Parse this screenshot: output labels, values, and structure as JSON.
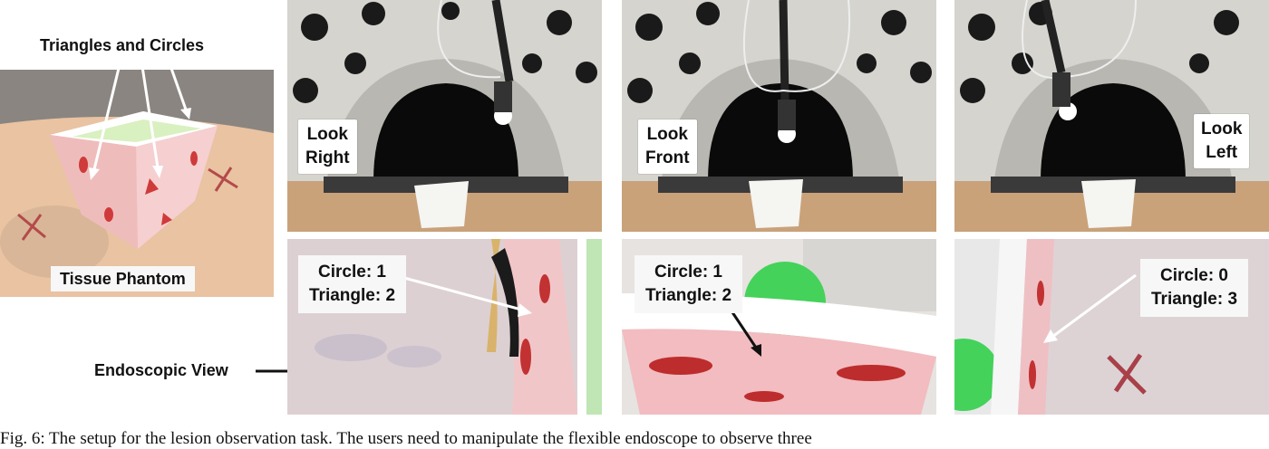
{
  "labels": {
    "triangles_circles": "Triangles and Circles",
    "tissue_phantom": "Tissue Phantom",
    "endoscopic_view": "Endoscopic View"
  },
  "views": [
    {
      "line1": "Look",
      "line2": "Right"
    },
    {
      "line1": "Look",
      "line2": "Front"
    },
    {
      "line1": "Look",
      "line2": "Left"
    }
  ],
  "counts": [
    {
      "circle": "Circle: 1",
      "triangle": "Triangle: 2"
    },
    {
      "circle": "Circle: 1",
      "triangle": "Triangle: 2"
    },
    {
      "circle": "Circle: 0",
      "triangle": "Triangle: 3"
    }
  ],
  "caption": "Fig. 6: The setup for the lesion observation task. The users need to manipulate the flexible endoscope to observe three"
}
